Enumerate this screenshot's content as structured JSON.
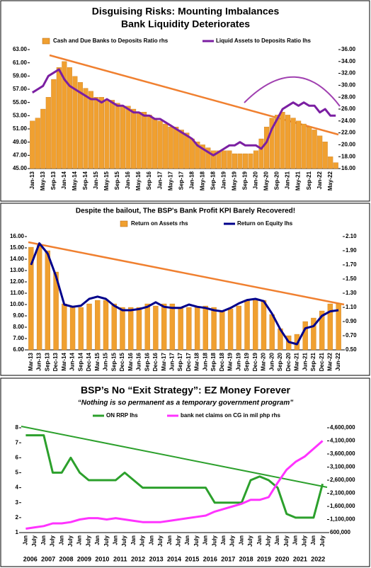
{
  "chart_data": [
    {
      "type": "combo",
      "title": "Disguising Risks: Mounting Imbalances",
      "subtitle": "Bank Liquidity Deteriorates",
      "categories": [
        "Jan-13",
        null,
        "May-13",
        null,
        "Sep-13",
        null,
        "Jan-14",
        null,
        "May-14",
        null,
        "Sep-14",
        null,
        "Jan-15",
        null,
        "May-15",
        null,
        "Sep-15",
        null,
        "Jan-16",
        null,
        "May-16",
        null,
        "Sep-16",
        null,
        "Jan-17",
        null,
        "May-17",
        null,
        "Sep-17",
        null,
        "Jan-18",
        null,
        "May-18",
        null,
        "Sep-18",
        null,
        "Jan-19",
        null,
        "May-19",
        null,
        "Sep-19",
        null,
        "Jan-20",
        null,
        "May-20",
        null,
        "Sep-20",
        null,
        "Jan-21",
        null,
        "May-21",
        null,
        "Sep-21",
        null,
        "Jan-22",
        null,
        "May-22",
        null
      ],
      "series": [
        {
          "name": "Cash and Due Banks to Deposits Ratio rhs",
          "type": "bar",
          "axis": "y2",
          "color": "#f0a030",
          "values": [
            24,
            24.5,
            26,
            28,
            31,
            33,
            34,
            33,
            31.5,
            30.5,
            29.5,
            29,
            28,
            28,
            27.5,
            27.5,
            27,
            26.5,
            26.5,
            26,
            25.5,
            25.5,
            25,
            24.5,
            24,
            23.5,
            23,
            23,
            22.5,
            22,
            21,
            20.5,
            20,
            19.5,
            19,
            19,
            19,
            19,
            18.5,
            18.5,
            18.5,
            18.5,
            19,
            21,
            23,
            24.5,
            25,
            25.5,
            25,
            24.5,
            24,
            23.5,
            23,
            22.5,
            21.5,
            20.5,
            18,
            17
          ]
        },
        {
          "name": "Liquid Assets to Deposits Ratio lhs",
          "type": "line",
          "axis": "y",
          "color": "#7b1fa2",
          "values": [
            56.5,
            57,
            57.5,
            59,
            59.5,
            60,
            58.5,
            57.5,
            57,
            56.5,
            56,
            55.5,
            55.5,
            55,
            55.5,
            55,
            54.5,
            54.5,
            54,
            53.5,
            53.5,
            53,
            53,
            52.5,
            52.5,
            52,
            51.5,
            51,
            50.5,
            50,
            49.5,
            48.5,
            48,
            47.5,
            47,
            47.5,
            48,
            48.5,
            48.5,
            49,
            48.5,
            48.5,
            48.5,
            48,
            49,
            51,
            52.5,
            54,
            54.5,
            55,
            54.5,
            55,
            54.5,
            54.5,
            53.5,
            54,
            53,
            53
          ]
        }
      ],
      "ylim": [
        45,
        63
      ],
      "yticks": [
        {
          "value": 45,
          "label": "45.00"
        },
        {
          "value": 47,
          "label": "47.00"
        },
        {
          "value": 49,
          "label": "49.00"
        },
        {
          "value": 51,
          "label": "51.00"
        },
        {
          "value": 53,
          "label": "53.00"
        },
        {
          "value": 55,
          "label": "55.00"
        },
        {
          "value": 57,
          "label": "57.00"
        },
        {
          "value": 59,
          "label": "59.00"
        },
        {
          "value": 61,
          "label": "61.00"
        },
        {
          "value": 63,
          "label": "63.00"
        }
      ],
      "y2lim": [
        16,
        36
      ],
      "y2ticks": [
        {
          "value": 16,
          "label": "16.00"
        },
        {
          "value": 18,
          "label": "18.00"
        },
        {
          "value": 20,
          "label": "20.00"
        },
        {
          "value": 22,
          "label": "22.00"
        },
        {
          "value": 24,
          "label": "24.00"
        },
        {
          "value": 26,
          "label": "26.00"
        },
        {
          "value": 28,
          "label": "28.00"
        },
        {
          "value": 30,
          "label": "30.00"
        },
        {
          "value": 32,
          "label": "32.00"
        },
        {
          "value": 34,
          "label": "34.00"
        },
        {
          "value": 36,
          "label": "36.00"
        }
      ]
    },
    {
      "type": "combo",
      "title": "Despite the bailout, The BSP's Bank Profit KPI Barely Recovered!",
      "categories": [
        "Mar-13",
        "Jun-13",
        "Sep-13",
        "Dec-13",
        "Mar-14",
        "Jun-14",
        "Sep-14",
        "Dec-14",
        "Mar-15",
        "Jun-15",
        "Sep-15",
        "Dec-15",
        "Mar-16",
        "Jun-16",
        "Sep-16",
        "Dec-16",
        "Mar-17",
        "Jun-17",
        "Sep-17",
        "Dec-17",
        "Mar-18",
        "Jun-18",
        "Sep-18",
        "Dec-18",
        "Mar-19",
        "Jun-19",
        "Sep-19",
        "Dec-19",
        "Mar-20",
        "Jun-20",
        "Sep-20",
        "Dec-20",
        "Mar-21",
        "Jun-21",
        "Sep-21",
        "Dec-21",
        "Mar-22",
        "Jun-22"
      ],
      "series": [
        {
          "name": "Return on Assets rhs",
          "type": "bar",
          "axis": "y2",
          "color": "#f0a030",
          "values": [
            1.95,
            1.98,
            1.9,
            1.6,
            1.15,
            1.1,
            1.1,
            1.15,
            1.2,
            1.2,
            1.15,
            1.1,
            1.1,
            1.1,
            1.15,
            1.12,
            1.15,
            1.15,
            1.1,
            1.1,
            1.1,
            1.12,
            1.1,
            1.05,
            1.08,
            1.12,
            1.2,
            1.2,
            1.2,
            1.0,
            0.8,
            0.7,
            0.72,
            0.9,
            0.95,
            1.05,
            1.15,
            1.15
          ]
        },
        {
          "name": "Return on Equity lhs",
          "type": "line",
          "axis": "y",
          "color": "#00008b",
          "values": [
            13.5,
            15.4,
            14.5,
            12.5,
            10.0,
            9.8,
            9.9,
            10.5,
            10.7,
            10.5,
            9.9,
            9.5,
            9.5,
            9.6,
            9.8,
            10.2,
            9.8,
            9.7,
            9.7,
            10.0,
            9.8,
            9.7,
            9.5,
            9.4,
            9.7,
            10.1,
            10.4,
            10.5,
            10.3,
            9.2,
            7.8,
            6.7,
            6.5,
            7.9,
            8.1,
            9.0,
            9.4,
            9.5
          ]
        }
      ],
      "ylim": [
        6,
        16
      ],
      "yticks": [
        {
          "value": 6,
          "label": "6.00"
        },
        {
          "value": 7,
          "label": "7.00"
        },
        {
          "value": 8,
          "label": "8.00"
        },
        {
          "value": 9,
          "label": "9.00"
        },
        {
          "value": 10,
          "label": "10.00"
        },
        {
          "value": 11,
          "label": "11.00"
        },
        {
          "value": 12,
          "label": "12.00"
        },
        {
          "value": 13,
          "label": "13.00"
        },
        {
          "value": 14,
          "label": "14.00"
        },
        {
          "value": 15,
          "label": "15.00"
        },
        {
          "value": 16,
          "label": "16.00"
        }
      ],
      "y2lim": [
        0.5,
        2.1
      ],
      "y2ticks": [
        {
          "value": 0.5,
          "label": "0.50"
        },
        {
          "value": 0.7,
          "label": "0.70"
        },
        {
          "value": 0.9,
          "label": "0.90"
        },
        {
          "value": 1.1,
          "label": "1.10"
        },
        {
          "value": 1.3,
          "label": "1.30"
        },
        {
          "value": 1.5,
          "label": "1.50"
        },
        {
          "value": 1.7,
          "label": "1.70"
        },
        {
          "value": 1.9,
          "label": "1.90"
        },
        {
          "value": 2.1,
          "label": "2.10"
        }
      ]
    },
    {
      "type": "line",
      "title": "BSP’s No “Exit Strategy”: EZ Money Forever",
      "subtitle": "“Nothing is so permanent as a temporary government program”",
      "categories": [
        "Jan",
        "July",
        "Jan",
        "July",
        "Jan",
        "July",
        "Jan",
        "July",
        "Jan",
        "July",
        "Jan",
        "July",
        "Jan",
        "July",
        "Jan",
        "July",
        "Jan",
        "July",
        "Jan",
        "July",
        "Jan",
        "July",
        "Jan",
        "July",
        "Jan",
        "July",
        "Jan",
        "July",
        "Jan",
        "July",
        "Jan",
        "July",
        "Jan",
        "July"
      ],
      "years": [
        2006,
        2007,
        2008,
        2009,
        2010,
        2011,
        2012,
        2013,
        2014,
        2015,
        2016,
        2017,
        2018,
        2019,
        2020,
        2021,
        2022
      ],
      "series": [
        {
          "name": "ON RRP lhs",
          "type": "line",
          "axis": "y",
          "color": "#2ca02c",
          "values": [
            7.5,
            7.5,
            7.5,
            5.0,
            5.0,
            6.0,
            5.0,
            4.5,
            4.5,
            4.5,
            4.5,
            5.0,
            4.5,
            4.0,
            4.0,
            4.0,
            4.0,
            4.0,
            4.0,
            4.0,
            4.0,
            3.0,
            3.0,
            3.0,
            3.0,
            4.5,
            4.75,
            4.5,
            4.0,
            2.25,
            2.0,
            2.0,
            2.0,
            4.25
          ]
        },
        {
          "name": "bank net claims on CG in mil php rhs",
          "type": "line",
          "axis": "y2",
          "color": "#ff33ff",
          "values": [
            750000,
            800000,
            850000,
            950000,
            950000,
            1000000,
            1100000,
            1150000,
            1150000,
            1100000,
            1150000,
            1100000,
            1050000,
            1000000,
            1000000,
            1000000,
            1050000,
            1100000,
            1150000,
            1200000,
            1250000,
            1400000,
            1500000,
            1600000,
            1700000,
            1850000,
            1850000,
            1950000,
            2500000,
            3000000,
            3300000,
            3500000,
            3800000,
            4100000
          ]
        }
      ],
      "ylim": [
        1,
        8
      ],
      "yticks": [
        1,
        2,
        3,
        4,
        5,
        6,
        7,
        8
      ],
      "y2lim": [
        600000,
        4600000
      ],
      "y2ticks": [
        {
          "value": 600000,
          "label": "600,000"
        },
        {
          "value": 1100000,
          "label": "1,100,000"
        },
        {
          "value": 1600000,
          "label": "1,600,000"
        },
        {
          "value": 2100000,
          "label": "2,100,000"
        },
        {
          "value": 2600000,
          "label": "2,600,000"
        },
        {
          "value": 3100000,
          "label": "3,100,000"
        },
        {
          "value": 3600000,
          "label": "3,600,000"
        },
        {
          "value": 4100000,
          "label": "4,100,000"
        },
        {
          "value": 4600000,
          "label": "4,600,000"
        }
      ]
    }
  ]
}
